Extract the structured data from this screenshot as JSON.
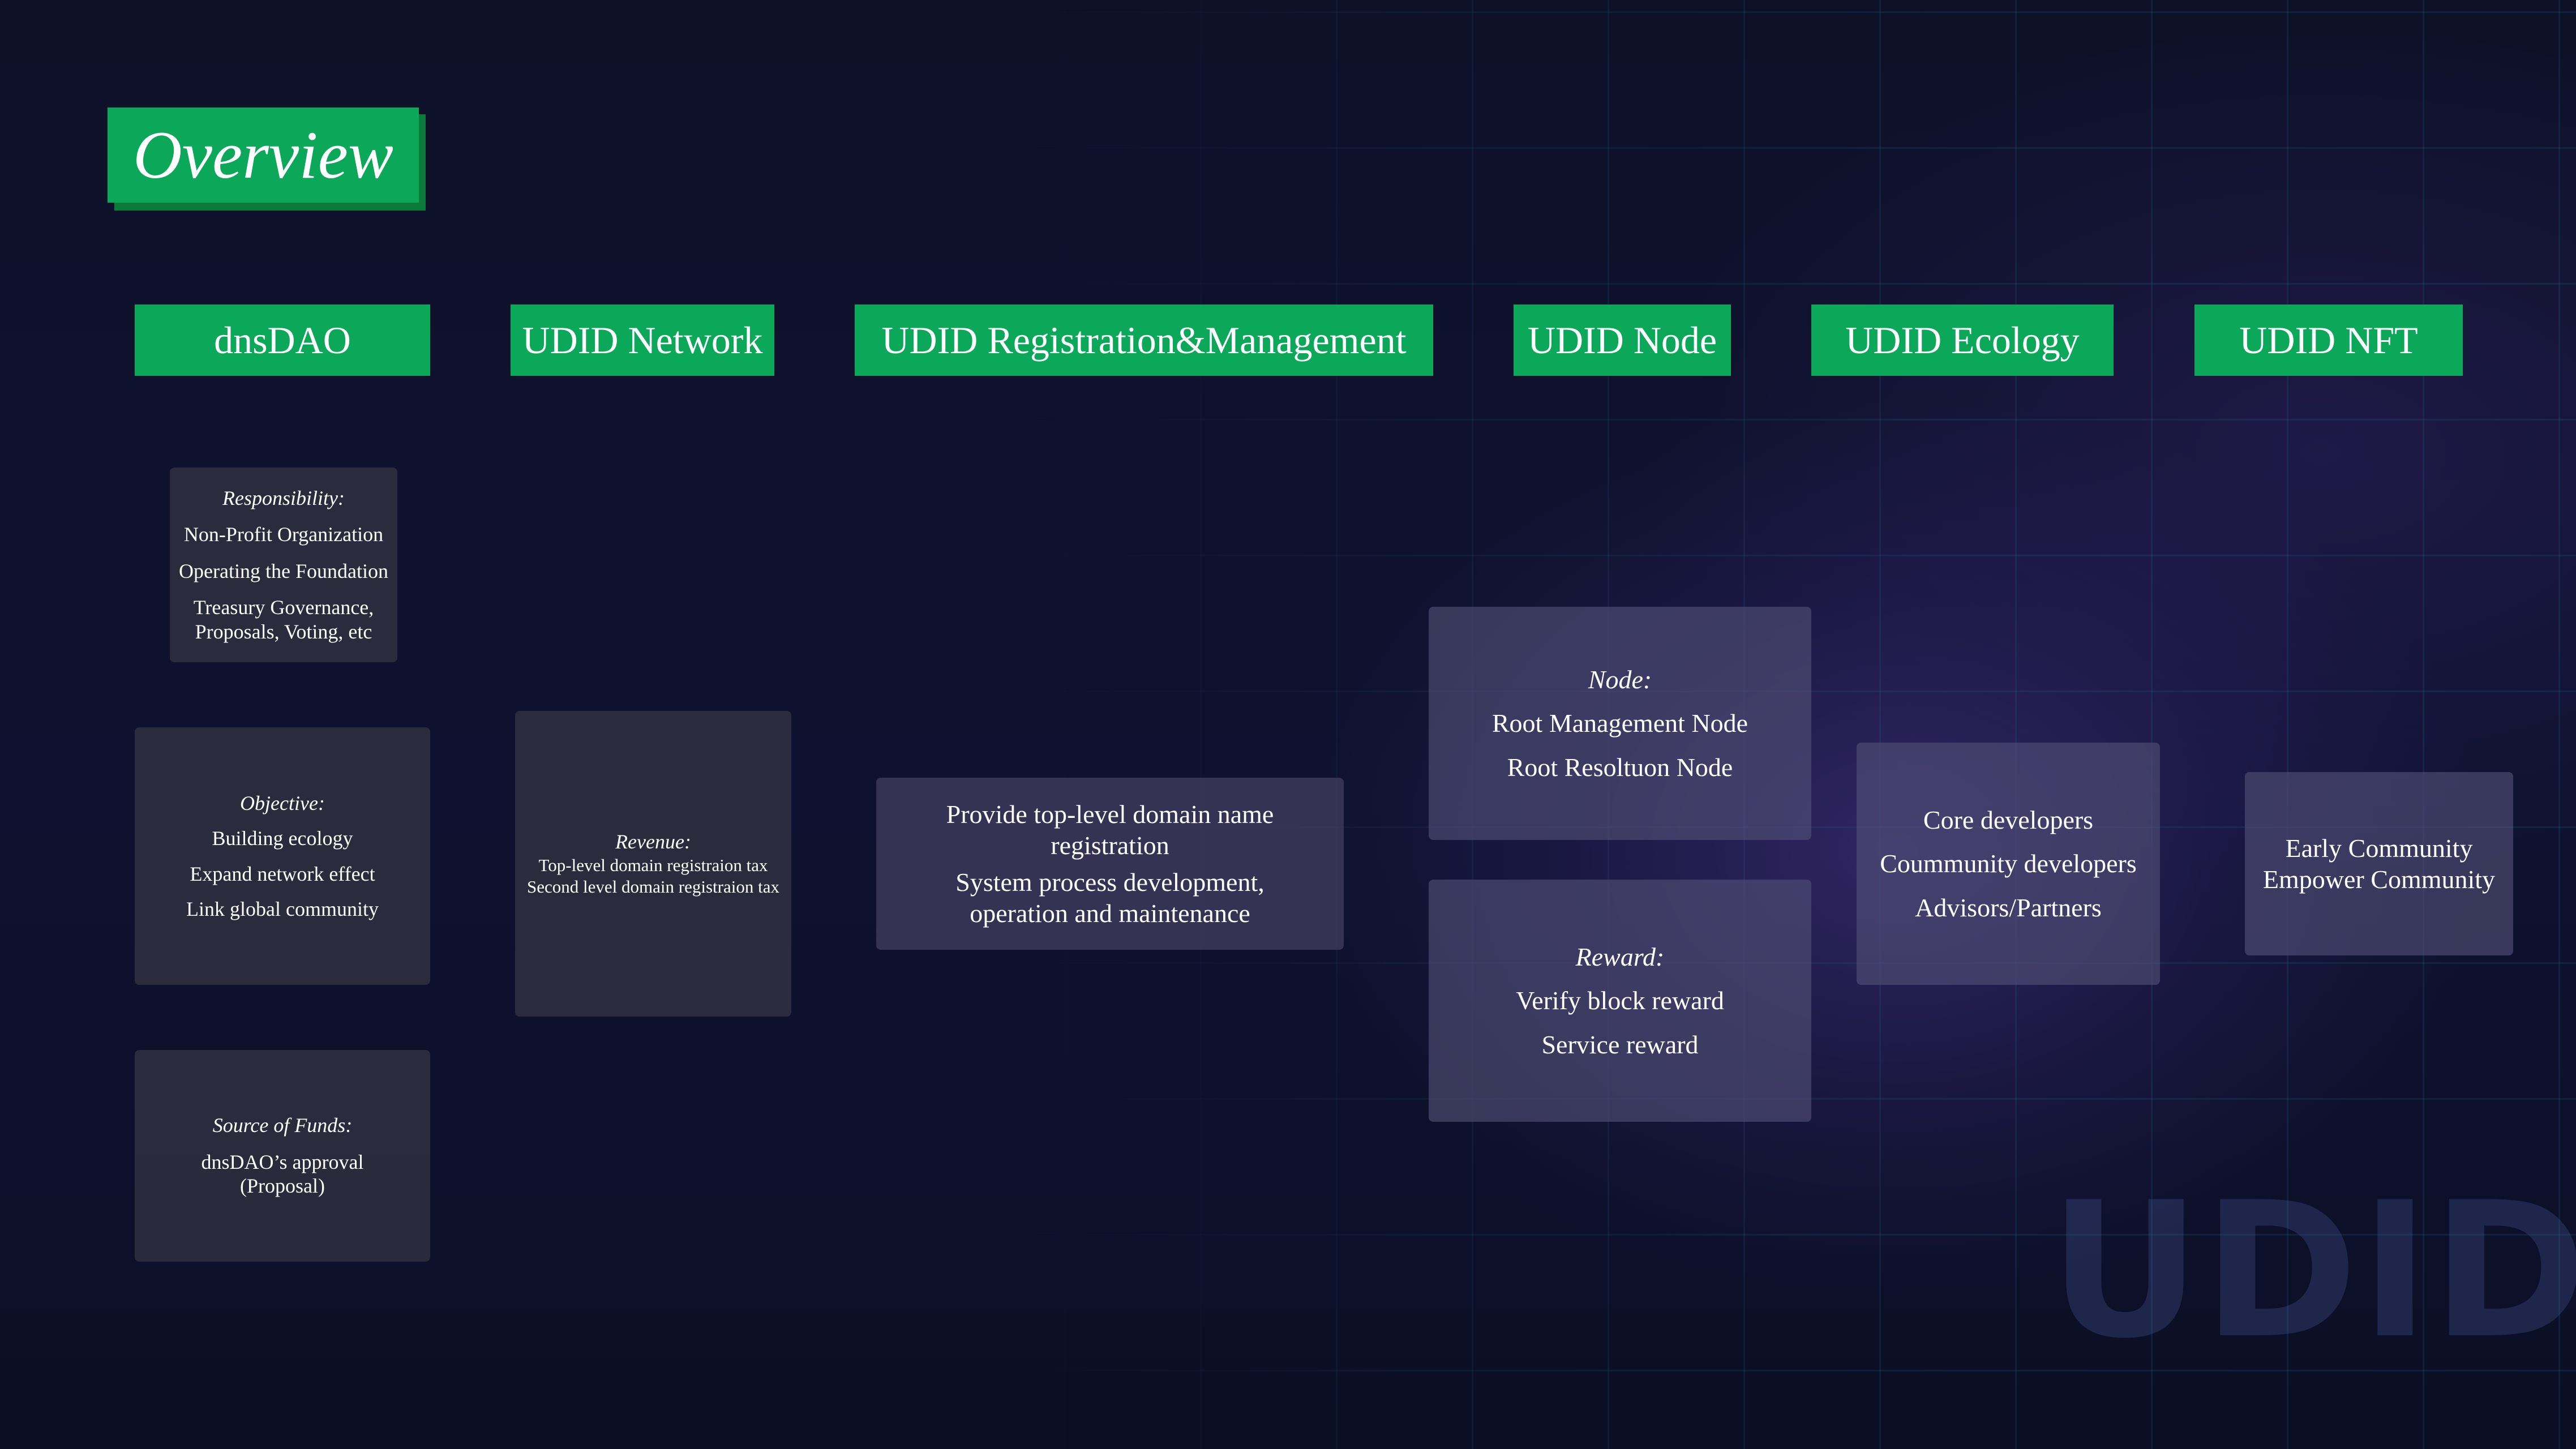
{
  "title": "Overview",
  "columns": {
    "dnsdao": "dnsDAO",
    "network": "UDID Network",
    "registration": "UDID Registration&Management",
    "node": "UDID Node",
    "ecology": "UDID Ecology",
    "nft": "UDID NFT"
  },
  "dnsdao": {
    "responsibility": {
      "label": "Responsibility:",
      "items": [
        "Non-Profit Organization",
        "Operating the Foundation",
        "Treasury Governance,",
        "Proposals, Voting, etc"
      ]
    },
    "objective": {
      "label": "Objective:",
      "items": [
        "Building ecology",
        "Expand network effect",
        "Link global community"
      ]
    },
    "funds": {
      "label": "Source of Funds:",
      "items": [
        "dnsDAO’s approval",
        "(Proposal)"
      ]
    }
  },
  "network": {
    "revenue": {
      "label": "Revenue:",
      "items": [
        "Top-level domain registraion tax",
        "Second level domain registraion tax"
      ]
    }
  },
  "registration": {
    "items": [
      "Provide top-level domain name",
      "registration",
      "System process development,",
      "operation and maintenance"
    ]
  },
  "node": {
    "node": {
      "label": "Node:",
      "items": [
        "Root Management Node",
        "Root Resoltuon Node"
      ]
    },
    "reward": {
      "label": "Reward:",
      "items": [
        "Verify block reward",
        "Service reward"
      ]
    }
  },
  "ecology": {
    "items": [
      "Core developers",
      "Coummunity developers",
      "Advisors/Partners"
    ]
  },
  "nft": {
    "items": [
      "Early Community",
      "Empower Community"
    ]
  },
  "watermark": "UDID",
  "colors": {
    "accent_green": "#0ba85a",
    "background": "#0d1128"
  }
}
